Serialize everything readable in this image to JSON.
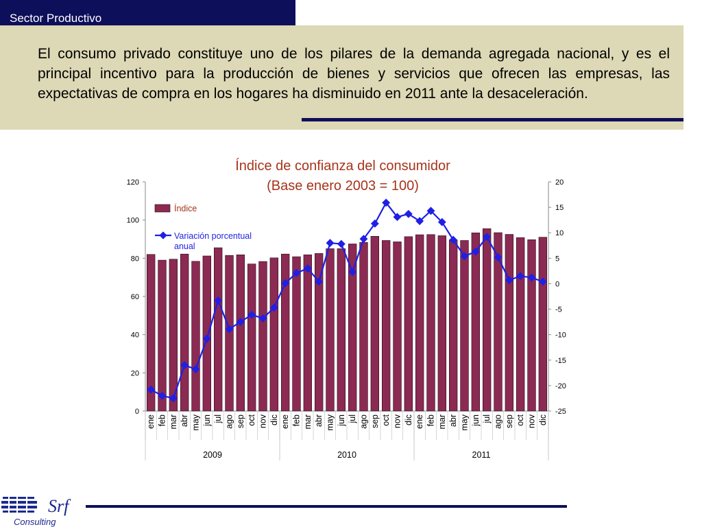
{
  "header": {
    "title": "Sector Productivo"
  },
  "intro": {
    "text": "El consumo privado constituye uno de los pilares de la demanda agregada nacional, y es el principal incentivo para la producción de bienes y servicios que ofrecen las empresas, las expectativas de compra en los hogares ha disminuido en 2011 ante la desaceleración."
  },
  "logo": {
    "brand": "Srf",
    "sub": "Consulting"
  },
  "colors": {
    "navy": "#0e0f5a",
    "bar": "#8b2a52",
    "line": "#1f1fe6",
    "title": "#a6341b",
    "box": "#ddd8b5"
  },
  "chart_data": {
    "type": "bar",
    "title": "Índice de confianza del consumidor",
    "subtitle": "(Base enero 2003 = 100)",
    "categories": [
      "ene",
      "feb",
      "mar",
      "abr",
      "may",
      "jun",
      "jul",
      "ago",
      "sep",
      "oct",
      "nov",
      "dic",
      "ene",
      "feb",
      "mar",
      "abr",
      "may",
      "jun",
      "jul",
      "ago",
      "sep",
      "oct",
      "nov",
      "dic",
      "ene",
      "feb",
      "mar",
      "abr",
      "may",
      "jun",
      "jul",
      "ago",
      "sep",
      "oct",
      "nov",
      "dic"
    ],
    "years": [
      {
        "label": "2009",
        "count": 12
      },
      {
        "label": "2010",
        "count": 12
      },
      {
        "label": "2011",
        "count": 12
      }
    ],
    "ylim_left": [
      0,
      120
    ],
    "yticks_left": [
      0,
      20,
      40,
      60,
      80,
      100,
      120
    ],
    "ylim_right": [
      -25,
      20
    ],
    "yticks_right": [
      -25,
      -20,
      -15,
      -10,
      -5,
      0,
      5,
      10,
      15,
      20
    ],
    "legend_position": "top-left",
    "series": [
      {
        "name": "Índice",
        "type": "bar",
        "axis": "left",
        "values": [
          82,
          79,
          79.5,
          82.2,
          78.4,
          81.2,
          85.5,
          81.5,
          81.8,
          77,
          78.3,
          80.2,
          82.2,
          80.8,
          81.8,
          82.5,
          85,
          85,
          87.5,
          88.3,
          91.5,
          89.3,
          88.6,
          91.3,
          92.3,
          92.4,
          91.8,
          89.6,
          89.3,
          93.3,
          95.5,
          93.4,
          92.5,
          90.8,
          89.7,
          91
        ]
      },
      {
        "name": "Variación porcentual anual",
        "type": "line",
        "axis": "right",
        "values": [
          -20.8,
          -22,
          -22.5,
          -16,
          -16.8,
          -10.8,
          -3.3,
          -8.9,
          -7.5,
          -6.1,
          -6.8,
          -4.7,
          0.1,
          2.1,
          3,
          0.4,
          8,
          7.8,
          2.3,
          8.8,
          11.8,
          15.9,
          13.1,
          13.7,
          12.3,
          14.3,
          12.1,
          8.6,
          5.4,
          6.3,
          9.2,
          5.2,
          0.7,
          1.5,
          1.2,
          0.4
        ]
      }
    ]
  }
}
